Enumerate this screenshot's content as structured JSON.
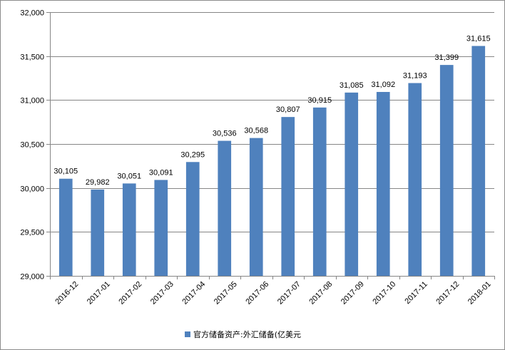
{
  "chart_data": {
    "type": "bar",
    "categories": [
      "2016-12",
      "2017-01",
      "2017-02",
      "2017-03",
      "2017-04",
      "2017-05",
      "2017-06",
      "2017-07",
      "2017-08",
      "2017-09",
      "2017-10",
      "2017-11",
      "2017-12",
      "2018-01"
    ],
    "series": [
      {
        "name": "官方储备资产:外汇储备(亿美元",
        "values": [
          30105,
          29982,
          30051,
          30091,
          30295,
          30536,
          30568,
          30807,
          30915,
          31085,
          31092,
          31193,
          31399,
          31615
        ],
        "labels": [
          "30,105",
          "29,982",
          "30,051",
          "30,091",
          "30,295",
          "30,536",
          "30,568",
          "30,807",
          "30,915",
          "31,085",
          "31,092",
          "31,193",
          "31,399",
          "31,615"
        ]
      }
    ],
    "ylim": [
      29000,
      32000
    ],
    "yticks": [
      "29,000",
      "29,500",
      "30,000",
      "30,500",
      "31,000",
      "31,500",
      "32,000"
    ],
    "grid": true,
    "legend_position": "bottom",
    "bar_color": "#4f81bd"
  }
}
